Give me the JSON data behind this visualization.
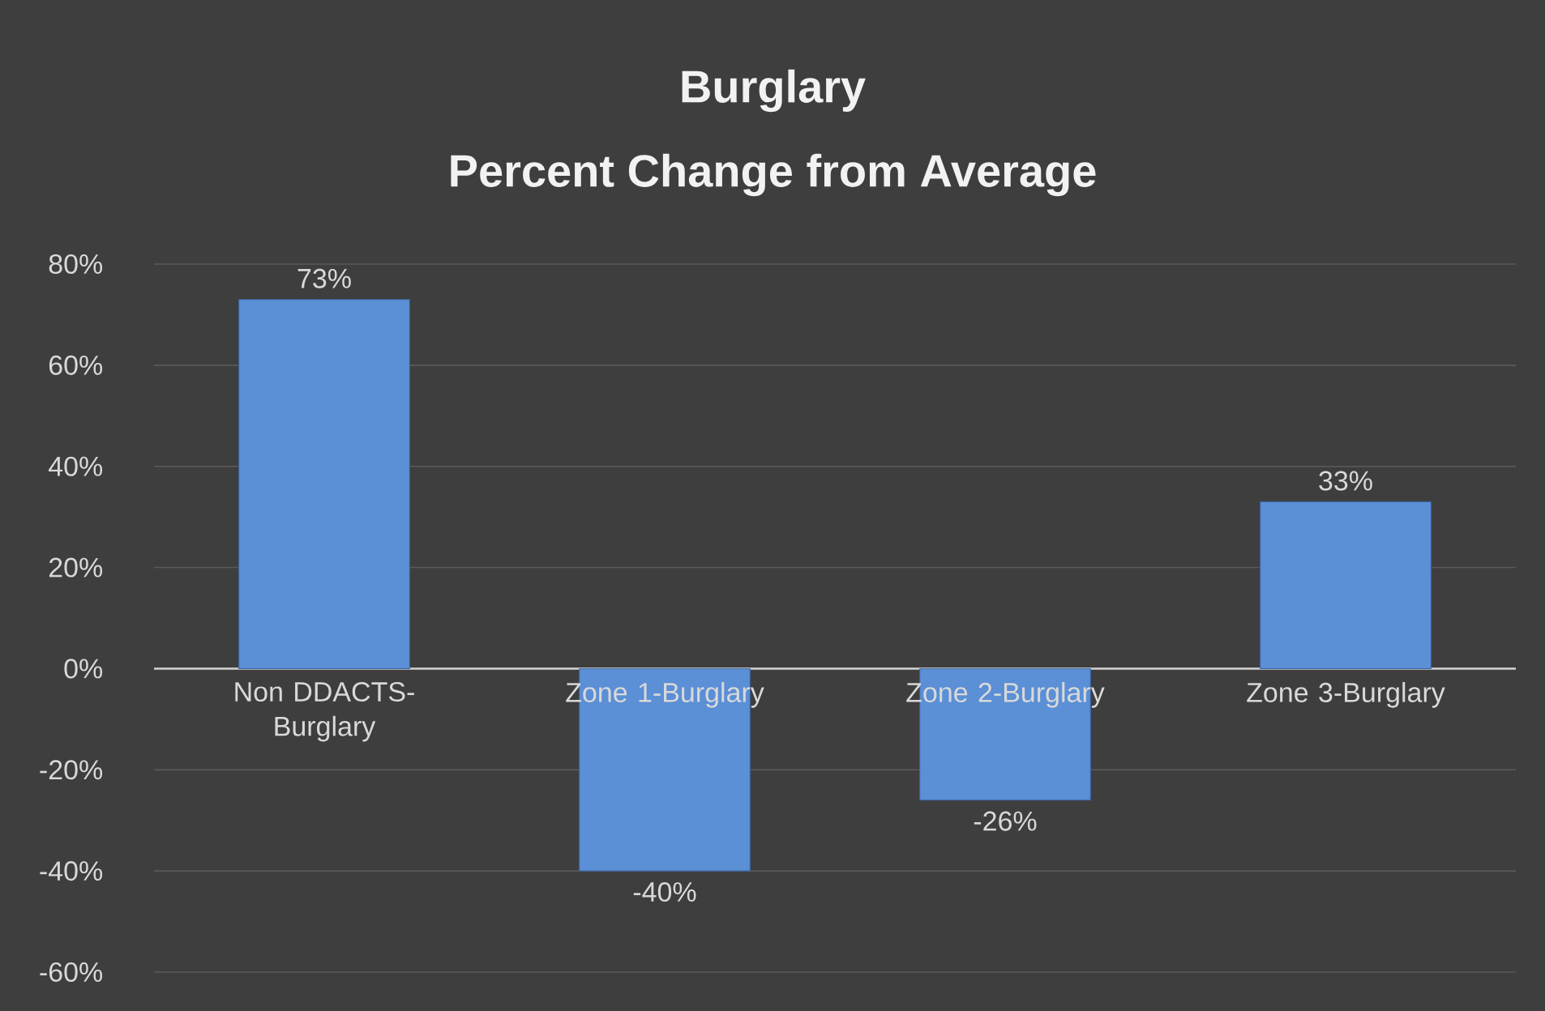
{
  "chart_data": {
    "type": "bar",
    "title": "Burglary",
    "subtitle": "Percent Change from Average",
    "categories": [
      "Non DDACTS-Burglary",
      "Zone 1-Burglary",
      "Zone 2-Burglary",
      "Zone 3-Burglary"
    ],
    "values": [
      73,
      -40,
      -26,
      33
    ],
    "value_labels": [
      "73%",
      "-40%",
      "-26%",
      "33%"
    ],
    "color": "#5b8fd6",
    "ylim": [
      -60,
      80
    ],
    "yticks": [
      {
        "value": -60,
        "label": "-60%"
      },
      {
        "value": -40,
        "label": "-40%"
      },
      {
        "value": -20,
        "label": "-20%"
      },
      {
        "value": 0,
        "label": "0%"
      },
      {
        "value": 20,
        "label": "20%"
      },
      {
        "value": 40,
        "label": "40%"
      },
      {
        "value": 60,
        "label": "60%"
      },
      {
        "value": 80,
        "label": "80%"
      }
    ],
    "grid": "y"
  }
}
